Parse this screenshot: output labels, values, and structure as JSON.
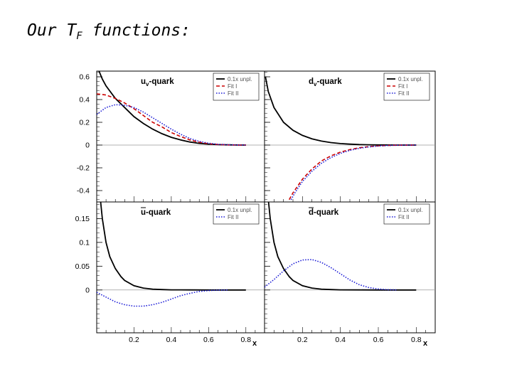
{
  "slide": {
    "title_main": "Our T",
    "title_sub": "F",
    "title_tail": " functions:"
  },
  "colors": {
    "unpol": "#000000",
    "fit1": "#cc0000",
    "fit2": "#1a1ad6",
    "axis": "#000000",
    "zero_line": "#999999"
  },
  "chart_data": [
    {
      "type": "line",
      "panel": "uv",
      "title_base": "u",
      "title_sub": "v",
      "title_tail": "-quark",
      "xlim": [
        0,
        0.9
      ],
      "ylim": [
        -0.5,
        0.65
      ],
      "yticks": [
        -0.4,
        -0.2,
        0,
        0.2,
        0.4,
        0.6
      ],
      "ytick_labels": [
        "-0.4",
        "-0.2",
        "0",
        "0.2",
        "0.4",
        "0.6"
      ],
      "xtick_labels": [],
      "xlabel": "",
      "series": [
        {
          "name": "0.1x unpl.",
          "style": "solid",
          "color": "#000000",
          "x": [
            0.01,
            0.03,
            0.05,
            0.1,
            0.15,
            0.2,
            0.25,
            0.3,
            0.35,
            0.4,
            0.45,
            0.5,
            0.55,
            0.6,
            0.65,
            0.7,
            0.75,
            0.8
          ],
          "y": [
            0.66,
            0.58,
            0.52,
            0.41,
            0.33,
            0.25,
            0.19,
            0.14,
            0.1,
            0.068,
            0.045,
            0.027,
            0.015,
            0.008,
            0.004,
            0.002,
            0.0008,
            0.0002
          ]
        },
        {
          "name": "Fit I",
          "style": "dashed",
          "color": "#cc0000",
          "x": [
            0.0,
            0.05,
            0.1,
            0.15,
            0.2,
            0.25,
            0.3,
            0.35,
            0.4,
            0.45,
            0.5,
            0.55,
            0.6,
            0.65,
            0.7,
            0.75,
            0.8
          ],
          "y": [
            0.45,
            0.44,
            0.41,
            0.37,
            0.32,
            0.26,
            0.2,
            0.16,
            0.11,
            0.075,
            0.045,
            0.025,
            0.012,
            0.005,
            0.002,
            0.0008,
            0.0002
          ]
        },
        {
          "name": "Fit II",
          "style": "dotted",
          "color": "#1a1ad6",
          "x": [
            0.0,
            0.05,
            0.1,
            0.15,
            0.2,
            0.25,
            0.3,
            0.35,
            0.4,
            0.45,
            0.5,
            0.55,
            0.6,
            0.65,
            0.7,
            0.75,
            0.8
          ],
          "y": [
            0.27,
            0.33,
            0.355,
            0.35,
            0.33,
            0.29,
            0.24,
            0.19,
            0.14,
            0.095,
            0.058,
            0.032,
            0.016,
            0.007,
            0.003,
            0.001,
            0.0003
          ]
        }
      ]
    },
    {
      "type": "line",
      "panel": "dv",
      "title_base": "d",
      "title_sub": "v",
      "title_tail": "-quark",
      "xlim": [
        0,
        0.9
      ],
      "ylim": [
        -0.5,
        0.65
      ],
      "yticks": [
        -0.4,
        -0.2,
        0,
        0.2,
        0.4,
        0.6
      ],
      "ytick_labels": [],
      "xtick_labels": [],
      "xlabel": "",
      "series": [
        {
          "name": "0.1x unpl.",
          "style": "solid",
          "color": "#000000",
          "x": [
            0.005,
            0.02,
            0.05,
            0.1,
            0.15,
            0.2,
            0.25,
            0.3,
            0.35,
            0.4,
            0.45,
            0.5,
            0.55,
            0.6,
            0.65,
            0.7,
            0.75,
            0.8
          ],
          "y": [
            0.6,
            0.47,
            0.33,
            0.2,
            0.13,
            0.085,
            0.055,
            0.035,
            0.022,
            0.013,
            0.008,
            0.0045,
            0.0025,
            0.0012,
            0.0005,
            0.0002,
            0.0001,
            0.0
          ]
        },
        {
          "name": "Fit I",
          "style": "dashed",
          "color": "#cc0000",
          "x": [
            0.13,
            0.15,
            0.2,
            0.25,
            0.3,
            0.35,
            0.4,
            0.45,
            0.5,
            0.55,
            0.6,
            0.65,
            0.7,
            0.75,
            0.8
          ],
          "y": [
            -0.48,
            -0.42,
            -0.3,
            -0.21,
            -0.14,
            -0.095,
            -0.062,
            -0.04,
            -0.024,
            -0.014,
            -0.007,
            -0.003,
            -0.0012,
            -0.0004,
            -0.0001
          ]
        },
        {
          "name": "Fit II",
          "style": "dotted",
          "color": "#1a1ad6",
          "x": [
            0.14,
            0.16,
            0.2,
            0.25,
            0.3,
            0.35,
            0.4,
            0.45,
            0.5,
            0.55,
            0.6,
            0.65,
            0.7,
            0.75,
            0.8
          ],
          "y": [
            -0.48,
            -0.42,
            -0.32,
            -0.23,
            -0.16,
            -0.11,
            -0.073,
            -0.047,
            -0.028,
            -0.016,
            -0.008,
            -0.0035,
            -0.0014,
            -0.0005,
            -0.0001
          ]
        }
      ]
    },
    {
      "type": "line",
      "panel": "ubar",
      "title_base": "u",
      "title_bar": true,
      "title_sub": "",
      "title_tail": "-quark",
      "xlim": [
        0,
        0.9
      ],
      "ylim": [
        -0.09,
        0.185
      ],
      "yticks": [
        0,
        0.05,
        0.1,
        0.15
      ],
      "ytick_labels": [
        "0",
        "0.05",
        "0.1",
        "0.15"
      ],
      "xticks": [
        0.2,
        0.4,
        0.6,
        0.8
      ],
      "xtick_labels": [
        "0.2",
        "0.4",
        "0.6",
        "0.8"
      ],
      "xlabel": "x",
      "series": [
        {
          "name": "0.1x unpl.",
          "style": "solid",
          "color": "#000000",
          "x": [
            0.02,
            0.03,
            0.05,
            0.07,
            0.1,
            0.13,
            0.15,
            0.2,
            0.25,
            0.3,
            0.35,
            0.4,
            0.5,
            0.6,
            0.7,
            0.8
          ],
          "y": [
            0.19,
            0.15,
            0.1,
            0.07,
            0.045,
            0.028,
            0.02,
            0.009,
            0.004,
            0.0018,
            0.0008,
            0.0003,
            0.0001,
            0.0,
            0.0,
            0.0
          ]
        },
        {
          "name": "Fit II",
          "style": "dotted",
          "color": "#1a1ad6",
          "x": [
            0.0,
            0.05,
            0.1,
            0.15,
            0.2,
            0.25,
            0.3,
            0.35,
            0.4,
            0.45,
            0.5,
            0.55,
            0.6,
            0.65,
            0.7
          ],
          "y": [
            -0.005,
            -0.015,
            -0.025,
            -0.031,
            -0.034,
            -0.034,
            -0.031,
            -0.026,
            -0.019,
            -0.012,
            -0.007,
            -0.003,
            -0.0012,
            -0.0004,
            -0.0001
          ]
        }
      ]
    },
    {
      "type": "line",
      "panel": "dbar",
      "title_base": "d",
      "title_bar": true,
      "title_sub": "",
      "title_tail": "-quark",
      "xlim": [
        0,
        0.9
      ],
      "ylim": [
        -0.09,
        0.185
      ],
      "yticks": [
        0,
        0.05,
        0.1,
        0.15
      ],
      "ytick_labels": [],
      "xticks": [
        0.2,
        0.4,
        0.6,
        0.8
      ],
      "xtick_labels": [
        "0.2",
        "0.4",
        "0.6",
        "0.8"
      ],
      "xlabel": "x",
      "series": [
        {
          "name": "0.1x unpl.",
          "style": "solid",
          "color": "#000000",
          "x": [
            0.02,
            0.03,
            0.05,
            0.07,
            0.1,
            0.13,
            0.15,
            0.2,
            0.25,
            0.3,
            0.35,
            0.4,
            0.5,
            0.6,
            0.7,
            0.8
          ],
          "y": [
            0.19,
            0.15,
            0.1,
            0.07,
            0.045,
            0.028,
            0.02,
            0.009,
            0.004,
            0.0018,
            0.0008,
            0.0003,
            0.0001,
            0.0,
            0.0,
            0.0
          ]
        },
        {
          "name": "Fit II",
          "style": "dotted",
          "color": "#1a1ad6",
          "x": [
            0.0,
            0.05,
            0.1,
            0.15,
            0.2,
            0.25,
            0.3,
            0.35,
            0.4,
            0.45,
            0.5,
            0.55,
            0.6,
            0.65,
            0.7
          ],
          "y": [
            0.006,
            0.022,
            0.04,
            0.055,
            0.063,
            0.064,
            0.058,
            0.047,
            0.034,
            0.021,
            0.011,
            0.005,
            0.002,
            0.0006,
            0.0001
          ]
        }
      ]
    }
  ]
}
